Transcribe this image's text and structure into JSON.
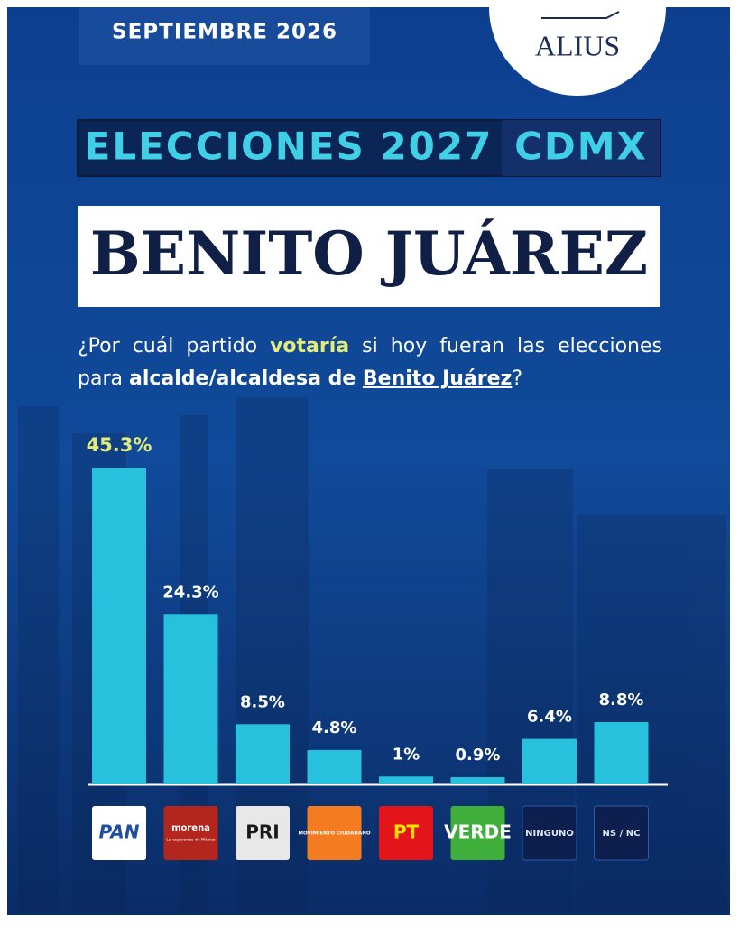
{
  "header": {
    "date": "SEPTIEMBRE 2026",
    "brand": "ALIUS",
    "banner_left": "ELECCIONES 2027",
    "banner_right": "CDMX",
    "headline": "BENITO JUÁREZ"
  },
  "question": [
    "¿Por cuál partido ",
    "votaría",
    " si hoy fueran las elecciones para ",
    "alcalde/alcaldesa de ",
    "Benito Juárez",
    "?"
  ],
  "chart_data": {
    "type": "bar",
    "categories": [
      "PAN",
      "morena",
      "PRI",
      "MOVIMIENTO CIUDADANO",
      "PT",
      "VERDE",
      "NINGUNO",
      "NS / NC"
    ],
    "morena_tagline": "La esperanza de México",
    "values": [
      45.3,
      24.3,
      8.5,
      4.8,
      1,
      0.9,
      6.4,
      8.8
    ],
    "value_labels": [
      "45.3%",
      "24.3%",
      "8.5%",
      "4.8%",
      "1%",
      "0.9%",
      "6.4%",
      "8.8%"
    ],
    "color": "#27c0dd",
    "highlight_label_color": "#e4ec78",
    "logo_colors": [
      "#ffffff",
      "#b3261e",
      "#e8e8e8",
      "#f47b20",
      "#e3151b",
      "#3fae3a",
      "#0c1f4e",
      "#0c1f4e"
    ],
    "logo_text_colors": [
      "#1f4fa0",
      "#ffffff",
      "#1a1a1a",
      "#ffffff",
      "#ffe600",
      "#ffffff",
      "#dfe6f5",
      "#dfe6f5"
    ]
  }
}
